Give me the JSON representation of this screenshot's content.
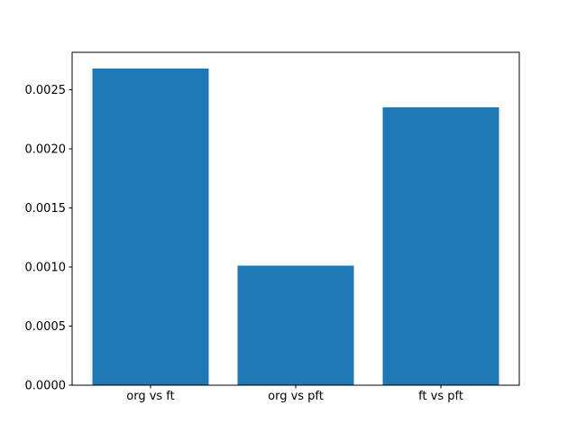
{
  "chart_data": {
    "type": "bar",
    "categories": [
      "org vs ft",
      "org vs pft",
      "ft vs pft"
    ],
    "values": [
      0.00268,
      0.00101,
      0.00235
    ],
    "title": "",
    "xlabel": "",
    "ylabel": "",
    "ylim": [
      0,
      0.002817
    ],
    "yticks": [
      0.0,
      0.0005,
      0.001,
      0.0015,
      0.002,
      0.0025
    ],
    "ytick_labels": [
      "0.0000",
      "0.0005",
      "0.0010",
      "0.0015",
      "0.0020",
      "0.0025"
    ],
    "bar_width_units": 0.8,
    "x_span_units": 3.08,
    "x_left_pad_units": 0.54,
    "grid": false,
    "legend": "none",
    "colors": {
      "bar": "#1f77b4",
      "spine": "#000000",
      "tick": "#000000",
      "background": "#ffffff"
    }
  }
}
